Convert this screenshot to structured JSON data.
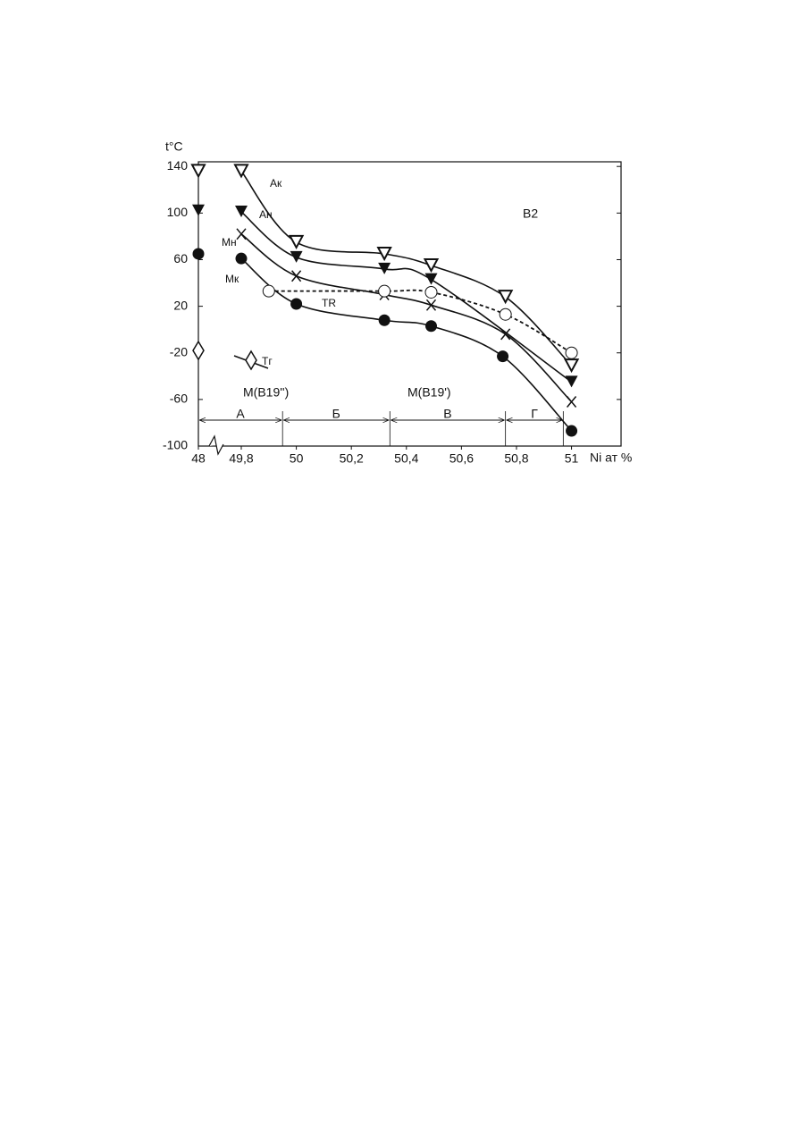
{
  "chart_data": {
    "type": "line",
    "ylabel": "t°C",
    "xlabel": "Ni ат %",
    "xlim": [
      48,
      51.18
    ],
    "ylim": [
      -100,
      144
    ],
    "xticks": [
      48,
      {
        "value": 49.8,
        "label": "49,8"
      },
      50,
      {
        "value": 50.2,
        "label": "50,2"
      },
      {
        "value": 50.4,
        "label": "50,4"
      },
      {
        "value": 50.6,
        "label": "50,6"
      },
      {
        "value": 50.8,
        "label": "50,8"
      },
      51
    ],
    "yticks": [
      -100,
      -60,
      -20,
      20,
      60,
      100,
      140
    ],
    "series": [
      {
        "name": "Aк",
        "marker": "triangle-open",
        "color": "#111111",
        "x": [
          48,
          49.8,
          50,
          50.32,
          50.49,
          50.76,
          51
        ],
        "values": [
          136,
          136,
          75,
          65,
          55,
          28,
          -31
        ]
      },
      {
        "name": "Aн",
        "marker": "triangle-filled",
        "color": "#111111",
        "x": [
          48,
          49.8,
          50,
          50.32,
          50.49,
          51
        ],
        "values": [
          102,
          101,
          62,
          52,
          43,
          -45
        ]
      },
      {
        "name": "Mн",
        "marker": "cross",
        "color": "#111111",
        "x": [
          49.8,
          50,
          50.32,
          50.49,
          50.76,
          51
        ],
        "values": [
          82,
          46,
          30,
          21,
          -4,
          -62
        ]
      },
      {
        "name": "Mк",
        "marker": "circle-filled",
        "color": "#111111",
        "x": [
          48,
          49.8,
          50,
          50.32,
          50.49,
          50.75,
          51
        ],
        "values": [
          65,
          61,
          22,
          8,
          3,
          -23,
          -87
        ]
      },
      {
        "name": "TR",
        "marker": "circle-open",
        "line_style": "dashed",
        "color": "#111111",
        "x": [
          49.9,
          50.32,
          50.49,
          50.76,
          51
        ],
        "values": [
          33,
          33,
          32,
          13,
          -20
        ]
      },
      {
        "name": "Tг",
        "marker": "diamond",
        "color": "#111111",
        "x": [
          48
        ],
        "values": [
          -18
        ]
      }
    ],
    "phases": [
      "B2",
      "M(B19'')",
      "M(B19')"
    ],
    "regions": [
      {
        "label": "А",
        "from": 48,
        "to": 49.95
      },
      {
        "label": "Б",
        "from": 49.95,
        "to": 50.34
      },
      {
        "label": "В",
        "from": 50.34,
        "to": 50.76
      },
      {
        "label": "Г",
        "from": 50.76,
        "to": 50.97
      }
    ]
  }
}
